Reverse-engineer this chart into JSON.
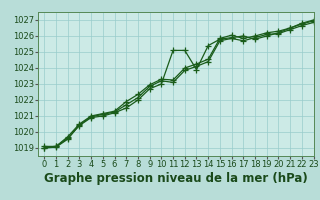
{
  "title": "Graphe pression niveau de la mer (hPa)",
  "background_color": "#b8ddd8",
  "plot_bg_color": "#cceae6",
  "grid_color": "#99cccc",
  "line_color": "#1a5c1a",
  "xlim": [
    -0.5,
    23
  ],
  "ylim": [
    1018.5,
    1027.5
  ],
  "xticks": [
    0,
    1,
    2,
    3,
    4,
    5,
    6,
    7,
    8,
    9,
    10,
    11,
    12,
    13,
    14,
    15,
    16,
    17,
    18,
    19,
    20,
    21,
    22,
    23
  ],
  "yticks": [
    1019,
    1020,
    1021,
    1022,
    1023,
    1024,
    1025,
    1026,
    1027
  ],
  "series": [
    [
      1019.0,
      1019.1,
      1019.6,
      1020.4,
      1020.9,
      1021.0,
      1021.2,
      1021.5,
      1022.0,
      1022.7,
      1023.0,
      1025.1,
      1025.1,
      1023.9,
      1025.4,
      1025.8,
      1025.9,
      1026.0,
      1025.8,
      1026.0,
      1026.2,
      1026.5,
      1026.8,
      1027.0
    ],
    [
      1019.1,
      1019.1,
      1019.7,
      1020.5,
      1021.0,
      1021.15,
      1021.3,
      1021.9,
      1022.35,
      1022.95,
      1023.3,
      1023.25,
      1024.0,
      1024.25,
      1024.55,
      1025.85,
      1026.05,
      1025.85,
      1026.0,
      1026.2,
      1026.3,
      1026.5,
      1026.75,
      1026.95
    ],
    [
      1019.0,
      1019.05,
      1019.55,
      1020.45,
      1020.95,
      1021.1,
      1021.25,
      1021.7,
      1022.15,
      1022.85,
      1023.2,
      1023.1,
      1023.85,
      1024.1,
      1024.4,
      1025.7,
      1025.85,
      1025.7,
      1025.9,
      1026.1,
      1026.15,
      1026.4,
      1026.65,
      1026.85
    ]
  ],
  "marker": "+",
  "markersize": 4,
  "linewidth": 0.9,
  "title_fontsize": 8.5,
  "tick_fontsize": 6.0
}
